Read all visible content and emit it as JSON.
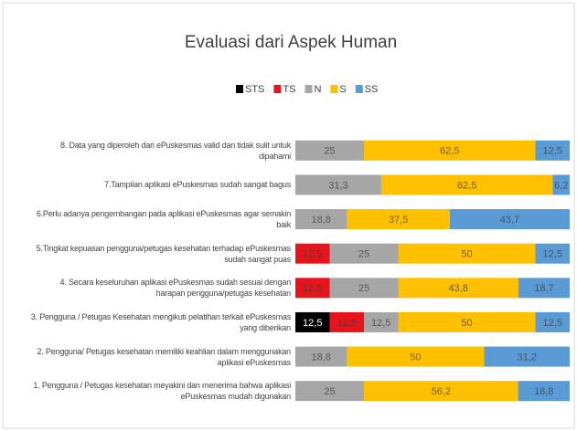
{
  "chart_data": {
    "type": "stacked_bar_horizontal",
    "title": "Evaluasi dari Aspek Human",
    "categories": [
      "8. Data yang diperoleh dari ePuskesmas valid dan tidak sulit untuk dipahami",
      "7.Tampilan aplikasi ePuskesmas sudah sangat bagus",
      "6.Perlu adanya pengembangan pada aplikasi ePuskesmas agar semakin baik",
      "5.Tingkat kepuasan pengguna/petugas kesehatan terhadap ePuskesmas sudah sangat puas",
      "4. Secara keseluruhan aplikasi ePuskesmas sudah sesuai dengan harapan pengguna/petugas kesehatan",
      "3. Pengguna / Petugas Kesehatan mengikuti pelatihan terkait ePuskesmas yang diberikan",
      "2. Pengguna/ Petugas kesehatan memiliki keahlian dalam menggunakan aplikasi ePuskesmas",
      "1. Pengguna / Petugas kesehatan  meyakini dan menerima bahwa aplikasi ePuskesmas mudah digunakan"
    ],
    "xlim": [
      0,
      100
    ],
    "series": [
      {
        "name": "STS",
        "color": "#000000",
        "values": [
          0,
          0,
          0,
          0,
          0,
          12.5,
          0,
          0
        ],
        "value_labels": [
          "0",
          "0",
          "0",
          "0",
          "0",
          "12,5",
          "0",
          "0"
        ]
      },
      {
        "name": "TS",
        "color": "#e8141b",
        "values": [
          0,
          0,
          0,
          12.5,
          12.5,
          12.5,
          0,
          0
        ],
        "value_labels": [
          "0",
          "0",
          "0",
          "12,5",
          "12,5",
          "12,5",
          "0",
          "0"
        ]
      },
      {
        "name": "N",
        "color": "#a6a6a6",
        "values": [
          25,
          31.3,
          18.8,
          25,
          25,
          12.5,
          18.8,
          25
        ],
        "value_labels": [
          "25",
          "31,3",
          "18,8",
          "25",
          "25",
          "12,5",
          "18,8",
          "25"
        ]
      },
      {
        "name": "S",
        "color": "#ffc000",
        "values": [
          62.5,
          62.5,
          37.5,
          50,
          43.8,
          50,
          50,
          56.2
        ],
        "value_labels": [
          "62,5",
          "62,5",
          "37,5",
          "50",
          "43,8",
          "50",
          "50",
          "56,2"
        ]
      },
      {
        "name": "SS",
        "color": "#5b9bd5",
        "values": [
          12.5,
          6.2,
          43.7,
          12.5,
          18.7,
          12.5,
          31.2,
          18.8
        ],
        "value_labels": [
          "12,5",
          "6,2",
          "43,7",
          "12,5",
          "18,7",
          "12,5",
          "31,2",
          "18,8"
        ]
      }
    ],
    "legend": "top"
  }
}
